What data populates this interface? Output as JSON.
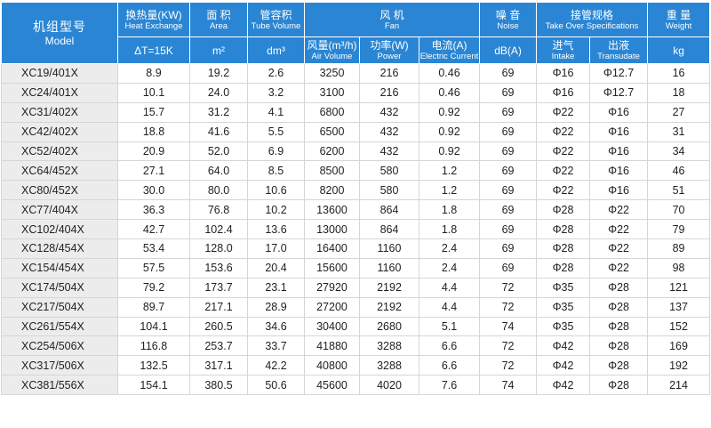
{
  "header": {
    "model": {
      "zh": "机组型号",
      "en": "Model"
    },
    "heat": {
      "zh": "换热量(KW)",
      "en": "Heat Exchange",
      "unit": "ΔT=15K"
    },
    "area": {
      "zh": "面 积",
      "en": "Area",
      "unit": "m²"
    },
    "tube": {
      "zh": "管容积",
      "en": "Tube Volume",
      "unit": "dm³"
    },
    "fan": {
      "zh": "风 机",
      "en": "Fan",
      "air": {
        "zh": "风量(m³/h)",
        "en": "Air Volume"
      },
      "power": {
        "zh": "功率(W)",
        "en": "Power"
      },
      "current": {
        "zh": "电流(A)",
        "en": "Electric Current"
      }
    },
    "noise": {
      "zh": "噪 音",
      "en": "Noise",
      "unit": "dB(A)"
    },
    "pipe": {
      "zh": "接管规格",
      "en": "Take Over Specifications",
      "intake": {
        "zh": "进气",
        "en": "Intake"
      },
      "transudate": {
        "zh": "出液",
        "en": "Transudate"
      }
    },
    "weight": {
      "zh": "重 量",
      "en": "Weight",
      "unit": "kg"
    }
  },
  "rows": [
    [
      "XC19/401X",
      "8.9",
      "19.2",
      "2.6",
      "3250",
      "216",
      "0.46",
      "69",
      "Φ16",
      "Φ12.7",
      "16"
    ],
    [
      "XC24/401X",
      "10.1",
      "24.0",
      "3.2",
      "3100",
      "216",
      "0.46",
      "69",
      "Φ16",
      "Φ12.7",
      "18"
    ],
    [
      "XC31/402X",
      "15.7",
      "31.2",
      "4.1",
      "6800",
      "432",
      "0.92",
      "69",
      "Φ22",
      "Φ16",
      "27"
    ],
    [
      "XC42/402X",
      "18.8",
      "41.6",
      "5.5",
      "6500",
      "432",
      "0.92",
      "69",
      "Φ22",
      "Φ16",
      "31"
    ],
    [
      "XC52/402X",
      "20.9",
      "52.0",
      "6.9",
      "6200",
      "432",
      "0.92",
      "69",
      "Φ22",
      "Φ16",
      "34"
    ],
    [
      "XC64/452X",
      "27.1",
      "64.0",
      "8.5",
      "8500",
      "580",
      "1.2",
      "69",
      "Φ22",
      "Φ16",
      "46"
    ],
    [
      "XC80/452X",
      "30.0",
      "80.0",
      "10.6",
      "8200",
      "580",
      "1.2",
      "69",
      "Φ22",
      "Φ16",
      "51"
    ],
    [
      "XC77/404X",
      "36.3",
      "76.8",
      "10.2",
      "13600",
      "864",
      "1.8",
      "69",
      "Φ28",
      "Φ22",
      "70"
    ],
    [
      "XC102/404X",
      "42.7",
      "102.4",
      "13.6",
      "13000",
      "864",
      "1.8",
      "69",
      "Φ28",
      "Φ22",
      "79"
    ],
    [
      "XC128/454X",
      "53.4",
      "128.0",
      "17.0",
      "16400",
      "1160",
      "2.4",
      "69",
      "Φ28",
      "Φ22",
      "89"
    ],
    [
      "XC154/454X",
      "57.5",
      "153.6",
      "20.4",
      "15600",
      "1160",
      "2.4",
      "69",
      "Φ28",
      "Φ22",
      "98"
    ],
    [
      "XC174/504X",
      "79.2",
      "173.7",
      "23.1",
      "27920",
      "2192",
      "4.4",
      "72",
      "Φ35",
      "Φ28",
      "121"
    ],
    [
      "XC217/504X",
      "89.7",
      "217.1",
      "28.9",
      "27200",
      "2192",
      "4.4",
      "72",
      "Φ35",
      "Φ28",
      "137"
    ],
    [
      "XC261/554X",
      "104.1",
      "260.5",
      "34.6",
      "30400",
      "2680",
      "5.1",
      "74",
      "Φ35",
      "Φ28",
      "152"
    ],
    [
      "XC254/506X",
      "116.8",
      "253.7",
      "33.7",
      "41880",
      "3288",
      "6.6",
      "72",
      "Φ42",
      "Φ28",
      "169"
    ],
    [
      "XC317/506X",
      "132.5",
      "317.1",
      "42.2",
      "40800",
      "3288",
      "6.6",
      "72",
      "Φ42",
      "Φ28",
      "192"
    ],
    [
      "XC381/556X",
      "154.1",
      "380.5",
      "50.6",
      "45600",
      "4020",
      "7.6",
      "74",
      "Φ42",
      "Φ28",
      "214"
    ]
  ],
  "colors": {
    "header_bg": "#2a86d4",
    "model_cell_bg": "#ececec"
  }
}
